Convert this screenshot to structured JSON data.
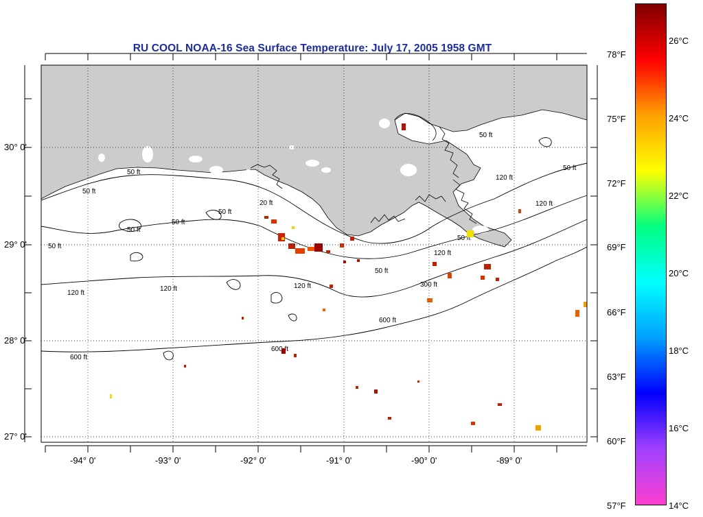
{
  "title": "RU COOL  NOAA-16  Sea Surface Temperature:  July 17, 2005 1958 GMT",
  "map": {
    "land_color": "#cccccc",
    "water_color": "#ffffff",
    "lat_labels": [
      "30° 0'",
      "29° 0'",
      "28° 0'",
      "27° 0'"
    ],
    "lon_labels": [
      "-94° 0'",
      "-93° 0'",
      "-92° 0'",
      "-91° 0'",
      "-90° 0'",
      "-89° 0'"
    ],
    "contour_labels": [
      "50 ft",
      "50 ft",
      "20 ft",
      "50 ft",
      "50 ft",
      "50 ft",
      "120 ft",
      "120 ft",
      "120 ft",
      "50 ft",
      "600 ft",
      "600 ft",
      "600 ft",
      "300 ft",
      "120 ft",
      "50 ft",
      "50 ft",
      "120 ft",
      "50 ft",
      "50 ft",
      "120 ft"
    ]
  },
  "colorbar": {
    "fahrenheit_labels": [
      "78°F",
      "75°F",
      "72°F",
      "69°F",
      "66°F",
      "63°F",
      "60°F",
      "57°F"
    ],
    "celsius_labels": [
      "26°C",
      "24°C",
      "22°C",
      "20°C",
      "18°C",
      "16°C",
      "14°C"
    ],
    "range_c": [
      14,
      27.5
    ],
    "colors": [
      "#ff3fd0",
      "#a040ff",
      "#0000ff",
      "#00a0ff",
      "#00ffff",
      "#00ff80",
      "#ffff00",
      "#ffa000",
      "#ff0000",
      "#800000"
    ]
  }
}
